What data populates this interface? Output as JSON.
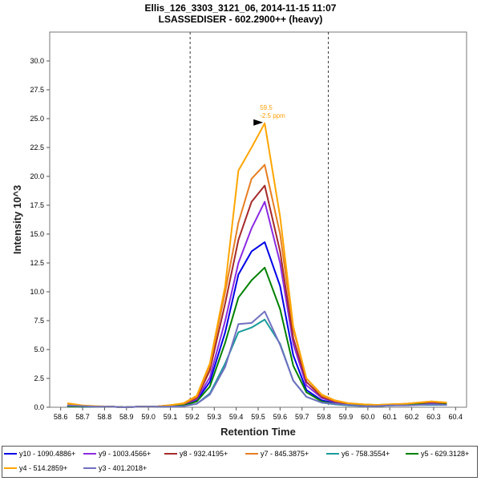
{
  "header": {
    "title_line1": "Ellis_126_3303_3121_06, 2014-11-15 11:07",
    "title_line2": "LSASSEDISER - 602.2900++ (heavy)"
  },
  "chart_data": {
    "type": "line",
    "xlabel": "Retention Time",
    "ylabel": "Intensity 10^3",
    "xlim": [
      58.55,
      60.45
    ],
    "ylim": [
      0,
      32.5
    ],
    "x_ticks": [
      "58.6",
      "58.7",
      "58.8",
      "58.9",
      "59.0",
      "59.1",
      "59.2",
      "59.3",
      "59.4",
      "59.5",
      "59.6",
      "59.7",
      "59.8",
      "59.9",
      "60.0",
      "60.1",
      "60.2",
      "60.3",
      "60.4"
    ],
    "y_ticks": [
      "0.0",
      "2.5",
      "5.0",
      "7.5",
      "10.0",
      "12.5",
      "15.0",
      "17.5",
      "20.0",
      "22.5",
      "25.0",
      "27.5",
      "30.0"
    ],
    "vlines": [
      59.19,
      59.82
    ],
    "annotation": {
      "x": 59.53,
      "y": 24.6,
      "line1": "59.5",
      "line2": "-2.5 ppm"
    },
    "x": [
      58.63,
      58.7,
      58.76,
      58.83,
      58.89,
      58.96,
      59.03,
      59.09,
      59.16,
      59.22,
      59.28,
      59.35,
      59.41,
      59.47,
      59.53,
      59.6,
      59.66,
      59.72,
      59.79,
      59.85,
      59.91,
      59.98,
      60.04,
      60.1,
      60.17,
      60.23,
      60.29,
      60.36
    ],
    "series": [
      {
        "name": "y10 - 1090.4886+",
        "color": "#0000e6",
        "values": [
          0.1,
          0.05,
          0.05,
          0.05,
          0.0,
          0.05,
          0.05,
          0.1,
          0.2,
          0.6,
          2.2,
          6.5,
          11.5,
          13.5,
          14.3,
          10.5,
          4.5,
          1.5,
          0.6,
          0.35,
          0.25,
          0.15,
          0.1,
          0.2,
          0.25,
          0.3,
          0.3,
          0.3
        ]
      },
      {
        "name": "y9 - 1003.4566+",
        "color": "#8a2be2",
        "values": [
          0.1,
          0.05,
          0.05,
          0.05,
          0.0,
          0.05,
          0.05,
          0.1,
          0.25,
          0.7,
          2.6,
          7.5,
          12.5,
          15.5,
          17.8,
          12.5,
          5.5,
          1.9,
          0.8,
          0.45,
          0.3,
          0.2,
          0.15,
          0.2,
          0.25,
          0.3,
          0.35,
          0.3
        ]
      },
      {
        "name": "y8 - 932.4195+",
        "color": "#a52a2a",
        "values": [
          0.15,
          0.1,
          0.05,
          0.05,
          0.0,
          0.05,
          0.05,
          0.15,
          0.3,
          0.8,
          3.2,
          9.0,
          14.5,
          17.8,
          19.2,
          13.5,
          6.0,
          2.2,
          0.9,
          0.5,
          0.3,
          0.2,
          0.2,
          0.2,
          0.3,
          0.35,
          0.45,
          0.35
        ]
      },
      {
        "name": "y7 - 845.3875+",
        "color": "#e67e22",
        "values": [
          0.2,
          0.1,
          0.05,
          0.05,
          0.0,
          0.05,
          0.05,
          0.15,
          0.3,
          0.9,
          3.6,
          10.0,
          16.0,
          19.8,
          21.0,
          15.0,
          6.8,
          2.5,
          1.0,
          0.55,
          0.35,
          0.25,
          0.2,
          0.25,
          0.3,
          0.4,
          0.5,
          0.4
        ]
      },
      {
        "name": "y6 - 758.3554+",
        "color": "#1a9b9b",
        "values": [
          0.1,
          0.05,
          0.05,
          0.05,
          0.0,
          0.05,
          0.05,
          0.05,
          0.1,
          0.3,
          1.2,
          3.8,
          6.5,
          6.9,
          7.6,
          5.5,
          2.3,
          0.9,
          0.4,
          0.25,
          0.15,
          0.1,
          0.1,
          0.15,
          0.2,
          0.2,
          0.2,
          0.2
        ]
      },
      {
        "name": "y5 - 629.3128+",
        "color": "#008000",
        "values": [
          0.1,
          0.05,
          0.05,
          0.05,
          0.0,
          0.05,
          0.05,
          0.05,
          0.15,
          0.5,
          1.8,
          5.6,
          9.5,
          11.0,
          12.1,
          8.5,
          3.6,
          1.3,
          0.5,
          0.3,
          0.2,
          0.15,
          0.1,
          0.15,
          0.2,
          0.25,
          0.25,
          0.25
        ]
      },
      {
        "name": "y4 - 514.2859+",
        "color": "#ffa500",
        "values": [
          0.35,
          0.15,
          0.1,
          0.05,
          0.0,
          0.05,
          0.05,
          0.15,
          0.35,
          1.0,
          3.8,
          10.5,
          20.5,
          22.5,
          24.6,
          16.5,
          7.0,
          2.5,
          1.1,
          0.6,
          0.35,
          0.25,
          0.2,
          0.25,
          0.3,
          0.4,
          0.5,
          0.4
        ]
      },
      {
        "name": "y3 - 401.2018+",
        "color": "#7070c0",
        "values": [
          0.15,
          0.1,
          0.05,
          0.05,
          0.0,
          0.05,
          0.05,
          0.05,
          0.1,
          0.3,
          1.1,
          3.5,
          7.2,
          7.3,
          8.3,
          5.4,
          2.3,
          0.9,
          0.4,
          0.3,
          0.2,
          0.1,
          0.1,
          0.15,
          0.15,
          0.2,
          0.25,
          0.2
        ]
      }
    ]
  }
}
